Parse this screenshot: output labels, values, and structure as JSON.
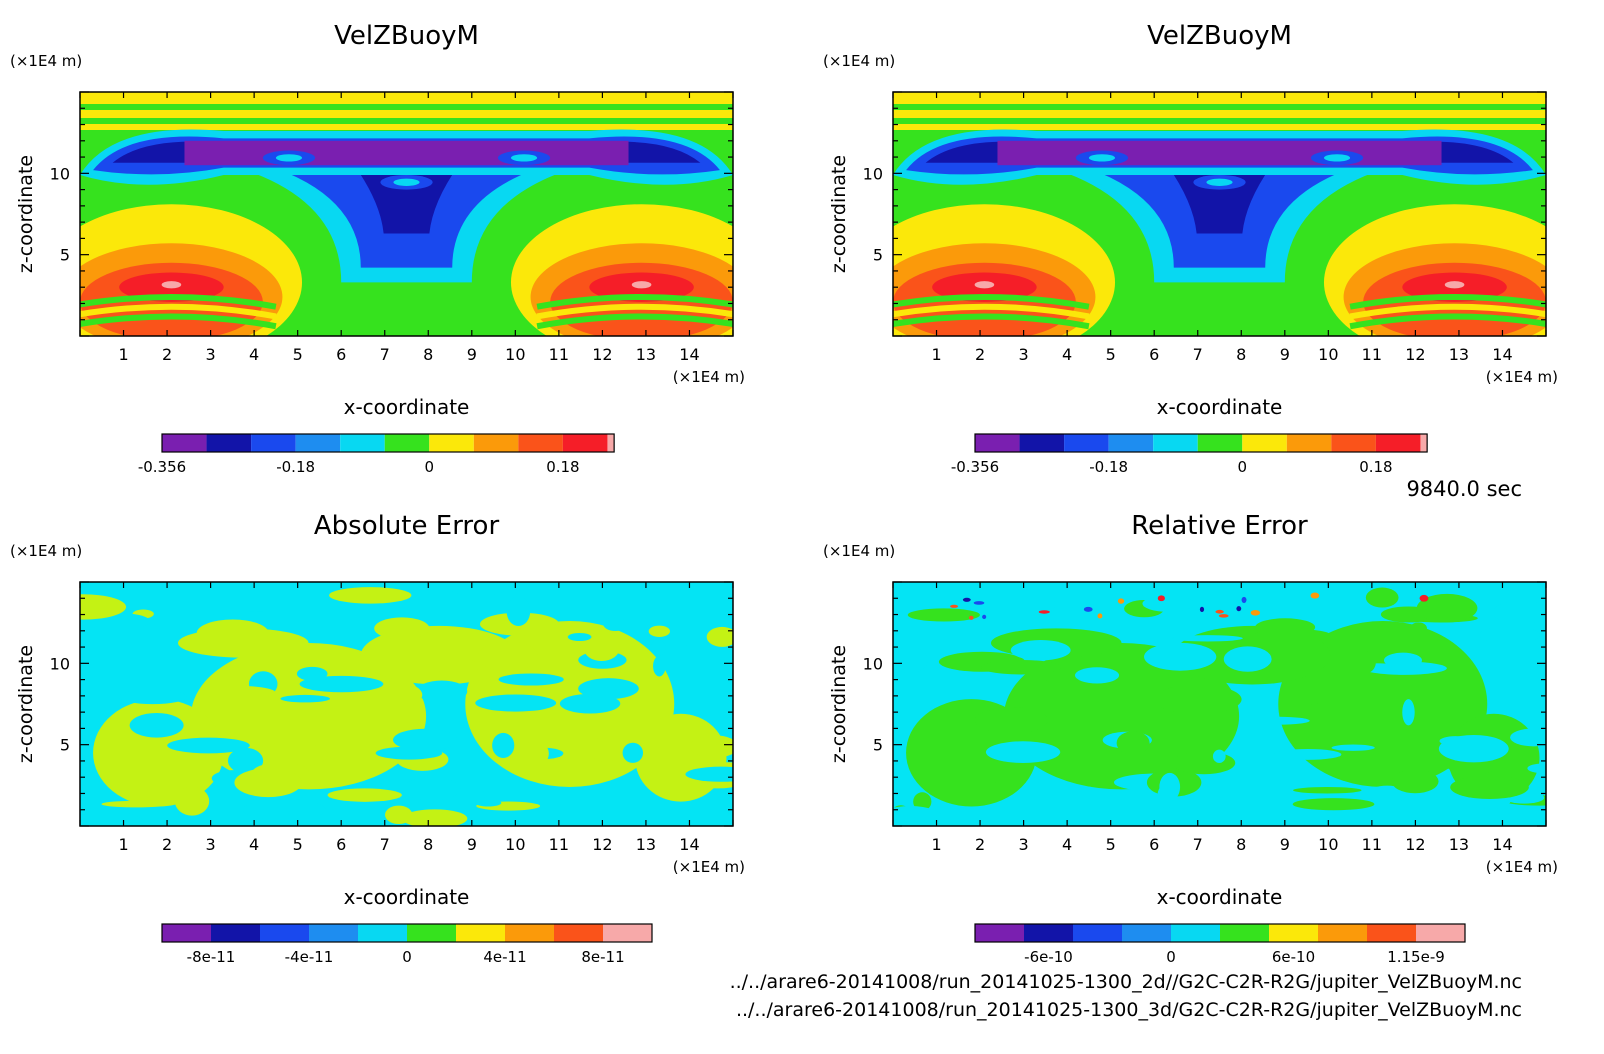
{
  "time_label": "9840.0 sec",
  "files": [
    "../../arare6-20141008/run_20141025-1300_2d//G2C-C2R-R2G/jupiter_VelZBuoyM.nc",
    "../../arare6-20141008/run_20141025-1300_3d/G2C-C2R-R2G/jupiter_VelZBuoyM.nc"
  ],
  "colors": {
    "rainbow": [
      "#7a1fb0",
      "#1214a8",
      "#1a49ee",
      "#1e8df0",
      "#08d8f2",
      "#36e21e",
      "#fbe80a",
      "#fb9a0a",
      "#fa531a",
      "#f51e28",
      "#f7a9a9"
    ],
    "abs_error_fill": [
      "#04e4f4",
      "#c4f214"
    ],
    "rel_error_fill": [
      "#04e4f4",
      "#36e21e"
    ]
  },
  "chart_data": [
    {
      "type": "heatmap",
      "title": "VelZBuoyM",
      "xlabel": "x-coordinate",
      "ylabel": "z-coordinate",
      "x_unit": "(×1E4 m)",
      "y_unit": "(×1E4 m)",
      "xlim": [
        0,
        15
      ],
      "ylim": [
        0,
        15
      ],
      "x_ticks": [
        1,
        2,
        3,
        4,
        5,
        6,
        7,
        8,
        9,
        10,
        11,
        12,
        13,
        14
      ],
      "y_ticks": [
        5,
        10
      ],
      "colorbar_labels": [
        "-0.356",
        "-0.18",
        "0",
        "0.18"
      ],
      "colorbar_levels": 11
    },
    {
      "type": "heatmap",
      "title": "VelZBuoyM",
      "xlabel": "x-coordinate",
      "ylabel": "z-coordinate",
      "x_unit": "(×1E4 m)",
      "y_unit": "(×1E4 m)",
      "xlim": [
        0,
        15
      ],
      "ylim": [
        0,
        15
      ],
      "x_ticks": [
        1,
        2,
        3,
        4,
        5,
        6,
        7,
        8,
        9,
        10,
        11,
        12,
        13,
        14
      ],
      "y_ticks": [
        5,
        10
      ],
      "colorbar_labels": [
        "-0.356",
        "-0.18",
        "0",
        "0.18"
      ],
      "colorbar_levels": 11
    },
    {
      "type": "heatmap",
      "title": "Absolute Error",
      "xlabel": "x-coordinate",
      "ylabel": "z-coordinate",
      "x_unit": "(×1E4 m)",
      "y_unit": "(×1E4 m)",
      "xlim": [
        0,
        15
      ],
      "ylim": [
        0,
        15
      ],
      "x_ticks": [
        1,
        2,
        3,
        4,
        5,
        6,
        7,
        8,
        9,
        10,
        11,
        12,
        13,
        14
      ],
      "y_ticks": [
        5,
        10
      ],
      "colorbar_labels": [
        "-8e-11",
        "-4e-11",
        "0",
        "4e-11",
        "8e-11"
      ],
      "colorbar_levels": 10
    },
    {
      "type": "heatmap",
      "title": "Relative Error",
      "xlabel": "x-coordinate",
      "ylabel": "z-coordinate",
      "x_unit": "(×1E4 m)",
      "y_unit": "(×1E4 m)",
      "xlim": [
        0,
        15
      ],
      "ylim": [
        0,
        15
      ],
      "x_ticks": [
        1,
        2,
        3,
        4,
        5,
        6,
        7,
        8,
        9,
        10,
        11,
        12,
        13,
        14
      ],
      "y_ticks": [
        5,
        10
      ],
      "colorbar_labels": [
        "-6e-10",
        "0",
        "6e-10",
        "1.15e-9"
      ],
      "colorbar_levels": 10
    }
  ]
}
